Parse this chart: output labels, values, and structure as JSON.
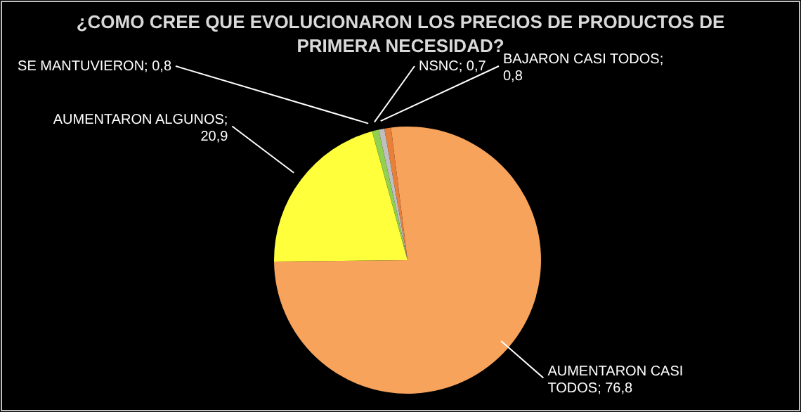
{
  "chart_data": {
    "type": "pie",
    "title": "¿COMO CREE QUE EVOLUCIONARON LOS PRECIOS DE PRODUCTOS DE PRIMERA NECESIDAD?",
    "categories": [
      "BAJARON CASI TODOS; 0,8",
      "AUMENTARON CASI TODOS; 76,8",
      "AUMENTARON ALGUNOS; 20,9",
      "SE MANTUVIERON; 0,8",
      "NSNC; 0,7"
    ],
    "values": [
      0.8,
      76.8,
      20.9,
      0.8,
      0.7
    ],
    "colors": [
      "#e8803a",
      "#f7a35c",
      "#ffff3c",
      "#92d050",
      "#bfbfbf"
    ]
  }
}
